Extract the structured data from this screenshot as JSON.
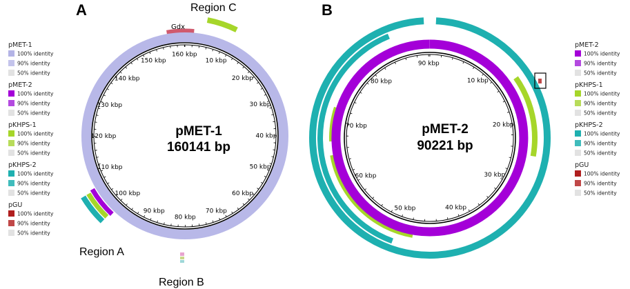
{
  "panel_a": {
    "letter": "A",
    "plasmid_name": "pMET-1",
    "plasmid_size": "160141 bp",
    "ticks": [
      "10 kbp",
      "20 kbp",
      "30 kbp",
      "40 kbp",
      "50 kbp",
      "60 kbp",
      "70 kbp",
      "80 kbp",
      "90 kbp",
      "100 kbp",
      "110 kbp",
      "120 kbp",
      "130 kbp",
      "140 kbp",
      "150 kbp",
      "160 kbp"
    ],
    "gene_label": "Gdx",
    "region_labels": [
      "Region A",
      "Region B",
      "Region C"
    ],
    "legend": [
      {
        "name": "pMET-1",
        "items": [
          {
            "label": "100% identity",
            "color": "#b4b4e6"
          },
          {
            "label": "90% identity",
            "color": "#c4c4ec"
          },
          {
            "label": "50% identity",
            "color": "#e2e2e2"
          }
        ]
      },
      {
        "name": "pMET-2",
        "items": [
          {
            "label": "100% identity",
            "color": "#a400d8"
          },
          {
            "label": "90% identity",
            "color": "#b44ae0"
          },
          {
            "label": "50% identity",
            "color": "#e2e2e2"
          }
        ]
      },
      {
        "name": "pKHPS-1",
        "items": [
          {
            "label": "100% identity",
            "color": "#a6d62a"
          },
          {
            "label": "90% identity",
            "color": "#b8dc5a"
          },
          {
            "label": "50% identity",
            "color": "#e2e2e2"
          }
        ]
      },
      {
        "name": "pKHPS-2",
        "items": [
          {
            "label": "100% identity",
            "color": "#1eb0b0"
          },
          {
            "label": "90% identity",
            "color": "#40bcbc"
          },
          {
            "label": "50% identity",
            "color": "#e2e2e2"
          }
        ]
      },
      {
        "name": "pGU",
        "items": [
          {
            "label": "100% identity",
            "color": "#b01e1e"
          },
          {
            "label": "90% identity",
            "color": "#c04848"
          },
          {
            "label": "50% identity",
            "color": "#e2e2e2"
          }
        ]
      }
    ]
  },
  "panel_b": {
    "letter": "B",
    "plasmid_name": "pMET-2",
    "plasmid_size": "90221 bp",
    "ticks": [
      "10 kbp",
      "20 kbp",
      "30 kbp",
      "40 kbp",
      "50 kbp",
      "60 kbp",
      "70 kbp",
      "80 kbp",
      "90 kbp"
    ],
    "legend": [
      {
        "name": "pMET-2",
        "items": [
          {
            "label": "100% identity",
            "color": "#a400d8"
          },
          {
            "label": "90% identity",
            "color": "#b44ae0"
          },
          {
            "label": "50% identity",
            "color": "#e2e2e2"
          }
        ]
      },
      {
        "name": "pKHPS-1",
        "items": [
          {
            "label": "100% identity",
            "color": "#a6d62a"
          },
          {
            "label": "90% identity",
            "color": "#b8dc5a"
          },
          {
            "label": "50% identity",
            "color": "#e2e2e2"
          }
        ]
      },
      {
        "name": "pKHPS-2",
        "items": [
          {
            "label": "100% identity",
            "color": "#1eb0b0"
          },
          {
            "label": "90% identity",
            "color": "#40bcbc"
          },
          {
            "label": "50% identity",
            "color": "#e2e2e2"
          }
        ]
      },
      {
        "name": "pGU",
        "items": [
          {
            "label": "100% identity",
            "color": "#b01e1e"
          },
          {
            "label": "90% identity",
            "color": "#c04848"
          },
          {
            "label": "50% identity",
            "color": "#e2e2e2"
          }
        ]
      }
    ]
  }
}
